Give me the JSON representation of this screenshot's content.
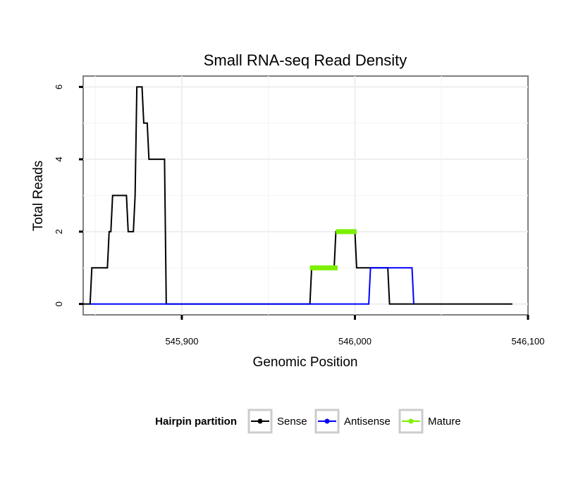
{
  "chart_data": {
    "type": "line",
    "title": "Small RNA-seq Read Density",
    "xlabel": "Genomic Position",
    "ylabel": "Total Reads",
    "xlim": [
      545843,
      546100
    ],
    "ylim": [
      -0.3,
      6.3
    ],
    "x_ticks": [
      545900,
      546000,
      546100
    ],
    "x_tick_labels": [
      "545,900",
      "546,000",
      "546,100"
    ],
    "y_ticks": [
      0,
      2,
      4,
      6
    ],
    "y_tick_labels": [
      "0",
      "2",
      "4",
      "6"
    ],
    "grid": true,
    "legend_position": "bottom",
    "legend_title": "Hairpin partition",
    "series": [
      {
        "name": "Sense",
        "color": "#000000",
        "line_width": 2,
        "points": [
          [
            545843,
            0
          ],
          [
            545847,
            0
          ],
          [
            545848,
            1
          ],
          [
            545857,
            1
          ],
          [
            545858,
            2
          ],
          [
            545859,
            2
          ],
          [
            545860,
            3
          ],
          [
            545868,
            3
          ],
          [
            545869,
            2
          ],
          [
            545872,
            2
          ],
          [
            545873,
            3
          ],
          [
            545874,
            6
          ],
          [
            545877,
            6
          ],
          [
            545878,
            5
          ],
          [
            545880,
            5
          ],
          [
            545881,
            4
          ],
          [
            545890,
            4
          ],
          [
            545891,
            0
          ],
          [
            545974,
            0
          ],
          [
            545975,
            1
          ],
          [
            545988,
            1
          ],
          [
            545989,
            2
          ],
          [
            546000,
            2
          ],
          [
            546001,
            1
          ],
          [
            546019,
            1
          ],
          [
            546020,
            0
          ],
          [
            546091,
            0
          ]
        ]
      },
      {
        "name": "Antisense",
        "color": "#0000ff",
        "line_width": 2,
        "points": [
          [
            545847,
            0
          ],
          [
            546008,
            0
          ],
          [
            546009,
            1
          ],
          [
            546033,
            1
          ],
          [
            546034,
            0
          ]
        ]
      },
      {
        "name": "Mature",
        "color": "#7cf000",
        "line_width": 7,
        "segments": [
          [
            [
              545974,
              1
            ],
            [
              545990,
              1
            ]
          ],
          [
            [
              545989,
              2
            ],
            [
              546001,
              2
            ]
          ]
        ]
      }
    ]
  }
}
